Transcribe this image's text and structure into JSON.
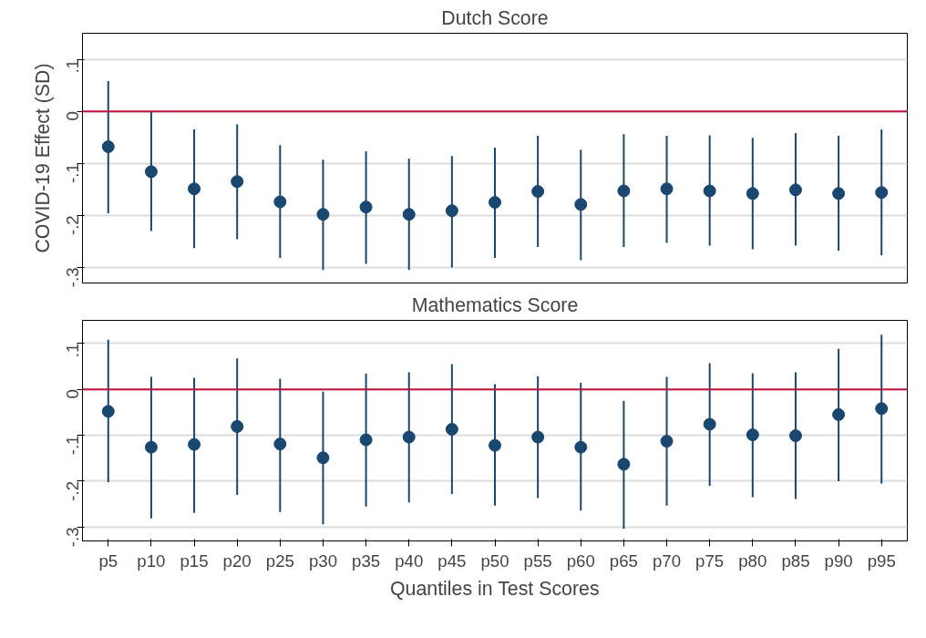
{
  "chart_data": [
    {
      "type": "scatter",
      "title": "Dutch Score",
      "ylabel": "COVID-19 Effect (SD)",
      "series": [
        {
          "color": "#1a476f",
          "values": [
            -0.068,
            -0.116,
            -0.149,
            -0.135,
            -0.174,
            -0.198,
            -0.184,
            -0.198,
            -0.191,
            -0.175,
            -0.154,
            -0.179,
            -0.153,
            -0.149,
            -0.153,
            -0.158,
            -0.151,
            -0.158,
            -0.156
          ],
          "errors": [
            [
              -0.196,
              0.058
            ],
            [
              -0.23,
              0.0
            ],
            [
              -0.263,
              -0.035
            ],
            [
              -0.246,
              -0.025
            ],
            [
              -0.282,
              -0.065
            ],
            [
              -0.305,
              -0.093
            ],
            [
              -0.293,
              -0.077
            ],
            [
              -0.305,
              -0.091
            ],
            [
              -0.3,
              -0.086
            ],
            [
              -0.282,
              -0.07
            ],
            [
              -0.261,
              -0.047
            ],
            [
              -0.286,
              -0.074
            ],
            [
              -0.261,
              -0.044
            ],
            [
              -0.253,
              -0.047
            ],
            [
              -0.258,
              -0.046
            ],
            [
              -0.265,
              -0.051
            ],
            [
              -0.258,
              -0.042
            ],
            [
              -0.268,
              -0.047
            ],
            [
              -0.277,
              -0.035
            ]
          ]
        }
      ],
      "ylim": [
        -0.33,
        0.15
      ],
      "yticks": [
        {
          "value": -0.3,
          "label": "-.3"
        },
        {
          "value": -0.2,
          "label": "-.2"
        },
        {
          "value": -0.1,
          "label": "-.1"
        },
        0,
        {
          "value": 0.1,
          "label": ".1"
        }
      ],
      "ref_lines": [
        {
          "axis": "y",
          "value": 0,
          "color": "#c0143c"
        }
      ],
      "grid": "y",
      "marker": "circle",
      "tick_labels": "y"
    },
    {
      "type": "scatter",
      "title": "Mathematics Score",
      "xlabel": "Quantiles in Test Scores",
      "categories": [
        "p5",
        "p10",
        "p15",
        "p20",
        "p25",
        "p30",
        "p35",
        "p40",
        "p45",
        "p50",
        "p55",
        "p60",
        "p65",
        "p70",
        "p75",
        "p80",
        "p85",
        "p90",
        "p95"
      ],
      "series": [
        {
          "color": "#1a476f",
          "values": [
            -0.048,
            -0.126,
            -0.12,
            -0.081,
            -0.119,
            -0.149,
            -0.11,
            -0.104,
            -0.087,
            -0.122,
            -0.104,
            -0.126,
            -0.163,
            -0.113,
            -0.076,
            -0.099,
            -0.101,
            -0.055,
            -0.042
          ],
          "errors": [
            [
              -0.202,
              0.108
            ],
            [
              -0.281,
              0.027
            ],
            [
              -0.269,
              0.025
            ],
            [
              -0.23,
              0.067
            ],
            [
              -0.267,
              0.023
            ],
            [
              -0.294,
              -0.005
            ],
            [
              -0.255,
              0.034
            ],
            [
              -0.246,
              0.037
            ],
            [
              -0.228,
              0.055
            ],
            [
              -0.253,
              0.011
            ],
            [
              -0.237,
              0.028
            ],
            [
              -0.264,
              0.014
            ],
            [
              -0.303,
              -0.025
            ],
            [
              -0.253,
              0.027
            ],
            [
              -0.21,
              0.057
            ],
            [
              -0.235,
              0.035
            ],
            [
              -0.239,
              0.037
            ],
            [
              -0.2,
              0.088
            ],
            [
              -0.205,
              0.119
            ]
          ]
        }
      ],
      "ylim": [
        -0.33,
        0.15
      ],
      "yticks": [
        {
          "value": -0.3,
          "label": "-.3"
        },
        {
          "value": -0.2,
          "label": "-.2"
        },
        {
          "value": -0.1,
          "label": "-.1"
        },
        0,
        {
          "value": 0.1,
          "label": ".1"
        }
      ],
      "ref_lines": [
        {
          "axis": "y",
          "value": 0,
          "color": "#c0143c"
        }
      ],
      "grid": "y",
      "marker": "circle"
    }
  ]
}
